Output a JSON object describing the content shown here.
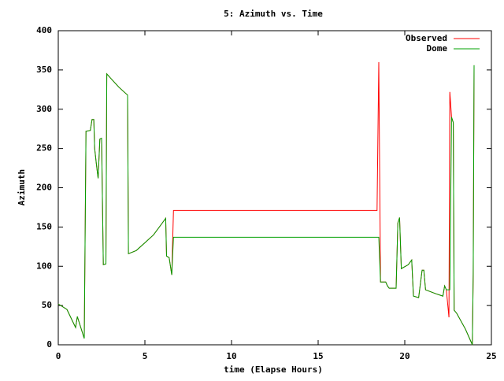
{
  "chart_data": {
    "type": "line",
    "title": "5: Azimuth vs. Time",
    "x_label": "time (Elapse Hours)",
    "y_label": "Azimuth",
    "x": [
      0,
      0.5,
      1.0,
      1.1,
      1.5,
      1.6,
      1.85,
      1.95,
      2.05,
      2.1,
      2.2,
      2.3,
      2.4,
      2.5,
      2.6,
      2.75,
      2.8,
      3.0,
      3.5,
      4.0,
      4.05,
      4.5,
      5.0,
      5.5,
      6.0,
      6.2,
      6.25,
      6.4,
      6.55,
      6.65,
      18.4,
      18.5,
      18.6,
      18.9,
      19.0,
      19.1,
      19.5,
      19.6,
      19.7,
      19.8,
      20.2,
      20.4,
      20.5,
      20.8,
      21.0,
      21.1,
      21.2,
      21.8,
      22.2,
      22.3,
      22.4,
      22.55,
      22.6,
      22.7,
      22.8,
      22.85,
      23.0,
      23.5,
      23.8,
      23.9,
      23.95,
      24.0
    ],
    "series": [
      {
        "name": "Observed",
        "color": "#ff0000",
        "values": [
          52,
          45,
          22,
          36,
          8,
          272,
          273,
          287,
          287,
          250,
          230,
          212,
          262,
          263,
          102,
          103,
          345,
          340,
          328,
          318,
          116,
          120,
          130,
          140,
          155,
          161,
          113,
          111,
          89,
          171,
          171,
          360,
          80,
          80,
          75,
          72,
          72,
          155,
          162,
          97,
          102,
          108,
          62,
          60,
          95,
          95,
          70,
          65,
          62,
          75,
          70,
          35,
          322,
          290,
          283,
          44,
          40,
          20,
          5,
          0,
          90,
          356
        ]
      },
      {
        "name": "Dome",
        "color": "#00a000",
        "values": [
          52,
          45,
          22,
          36,
          8,
          272,
          273,
          287,
          287,
          250,
          230,
          212,
          262,
          263,
          102,
          103,
          345,
          340,
          328,
          318,
          116,
          120,
          130,
          140,
          155,
          161,
          113,
          111,
          89,
          137,
          137,
          137,
          80,
          80,
          75,
          72,
          72,
          155,
          162,
          97,
          102,
          108,
          62,
          60,
          95,
          95,
          70,
          65,
          62,
          75,
          70,
          70,
          70,
          290,
          283,
          44,
          40,
          20,
          5,
          0,
          90,
          356
        ]
      }
    ],
    "xlim": [
      0,
      25
    ],
    "xticks": [
      0,
      5,
      10,
      15,
      20,
      25
    ],
    "ylim": [
      0,
      400
    ],
    "yticks": [
      0,
      50,
      100,
      150,
      200,
      250,
      300,
      350,
      400
    ],
    "grid": false,
    "legend": "top-right"
  }
}
